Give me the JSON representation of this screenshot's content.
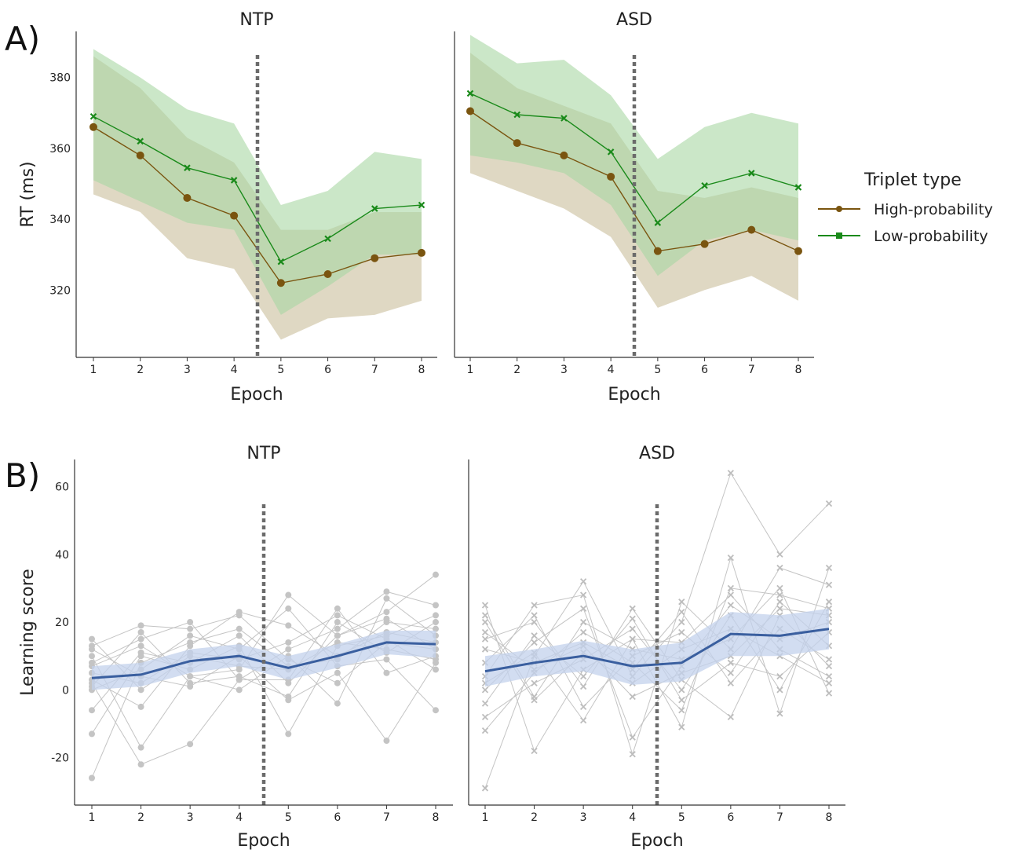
{
  "figure": {
    "panel_letters": [
      "A)",
      "B)"
    ]
  },
  "legend": {
    "title": "Triplet type",
    "items": [
      {
        "label": "High-probability",
        "color": "#7a5510"
      },
      {
        "label": "Low-probability",
        "color": "#1a8a1a"
      }
    ]
  },
  "chart_data": [
    {
      "panel": "A",
      "type": "line",
      "title": "NTP",
      "xlabel": "Epoch",
      "ylabel": "RT (ms)",
      "x": [
        1,
        2,
        3,
        4,
        5,
        6,
        7,
        8
      ],
      "ylim": [
        301,
        393
      ],
      "yticks": [
        320,
        340,
        360,
        380
      ],
      "vline_x": 4.5,
      "series": [
        {
          "name": "High-probability",
          "color": "#7a5510",
          "band_color": "#d9d1b8",
          "marker": "circle",
          "values": [
            366,
            358,
            346,
            341,
            322,
            324.5,
            329,
            330.5
          ],
          "lower": [
            347,
            342,
            329,
            326,
            306,
            312,
            313,
            317
          ],
          "upper": [
            386,
            377,
            363,
            356,
            337,
            337,
            342,
            342
          ]
        },
        {
          "name": "Low-probability",
          "color": "#1a8a1a",
          "band_color": "#a9d7a3",
          "marker": "x",
          "values": [
            369,
            362,
            354.5,
            351,
            328,
            334.5,
            343,
            344
          ],
          "lower": [
            351,
            345,
            339,
            337,
            313,
            321,
            330,
            330
          ],
          "upper": [
            388,
            380,
            371,
            367,
            344,
            348,
            359,
            357
          ]
        }
      ]
    },
    {
      "panel": "A",
      "type": "line",
      "title": "ASD",
      "xlabel": "Epoch",
      "ylabel": "",
      "x": [
        1,
        2,
        3,
        4,
        5,
        6,
        7,
        8
      ],
      "ylim": [
        301,
        393
      ],
      "yticks": [],
      "vline_x": 4.5,
      "series": [
        {
          "name": "High-probability",
          "color": "#7a5510",
          "band_color": "#d9d1b8",
          "marker": "circle",
          "values": [
            370.5,
            361.5,
            358,
            352,
            331,
            333,
            337,
            331
          ],
          "lower": [
            353,
            348,
            343,
            335,
            315,
            320,
            324,
            317
          ],
          "upper": [
            387,
            377,
            372,
            367,
            348,
            346,
            349,
            346
          ]
        },
        {
          "name": "Low-probability",
          "color": "#1a8a1a",
          "band_color": "#a9d7a3",
          "marker": "x",
          "values": [
            375.5,
            369.5,
            368.5,
            359,
            339,
            349.5,
            353,
            349
          ],
          "lower": [
            358,
            356,
            353,
            344,
            324,
            334,
            337,
            334
          ],
          "upper": [
            392,
            384,
            385,
            375,
            357,
            366,
            370,
            367
          ]
        }
      ]
    },
    {
      "panel": "B",
      "type": "line",
      "title": "NTP",
      "xlabel": "Epoch",
      "ylabel": "Learning score",
      "x": [
        1,
        2,
        3,
        4,
        5,
        6,
        7,
        8
      ],
      "ylim": [
        -34,
        68
      ],
      "yticks": [
        -20,
        0,
        20,
        40,
        60
      ],
      "vline_x": 4.5,
      "marker": "circle",
      "mean": {
        "color": "#3a5f9f",
        "band_color": "#c3d1ec",
        "values": [
          3.5,
          4.5,
          8.5,
          10,
          6.5,
          10,
          14,
          13.5
        ],
        "lower": [
          0,
          1,
          5,
          7,
          3,
          6.5,
          10.5,
          9.5
        ],
        "upper": [
          7,
          8,
          12,
          13.5,
          10,
          13.5,
          17.5,
          17.5
        ]
      },
      "individual": [
        [
          2,
          -22,
          -16,
          3,
          12,
          18,
          29,
          25
        ],
        [
          13,
          19,
          18,
          22,
          9,
          2,
          14,
          12
        ],
        [
          10,
          -17,
          4,
          6,
          28,
          16,
          23,
          34
        ],
        [
          -26,
          8,
          14,
          18,
          7,
          9,
          20,
          18
        ],
        [
          5,
          2,
          11,
          9,
          14,
          22,
          15,
          6
        ],
        [
          -13,
          10,
          6,
          13,
          -13,
          13,
          16,
          22
        ],
        [
          8,
          15,
          20,
          3,
          3,
          24,
          5,
          10
        ],
        [
          3,
          -5,
          13,
          23,
          19,
          10,
          17,
          14
        ],
        [
          12,
          4,
          1,
          10,
          -3,
          5,
          -15,
          8
        ],
        [
          -6,
          11,
          8,
          16,
          2,
          16,
          21,
          12
        ],
        [
          0,
          6,
          16,
          12,
          24,
          7,
          9,
          -6
        ],
        [
          7,
          13,
          4,
          0,
          10,
          -4,
          27,
          16
        ],
        [
          15,
          0,
          10,
          7,
          6,
          14,
          12,
          9
        ],
        [
          1,
          17,
          2,
          4,
          -2,
          20,
          11,
          20
        ]
      ]
    },
    {
      "panel": "B",
      "type": "line",
      "title": "ASD",
      "xlabel": "Epoch",
      "ylabel": "",
      "x": [
        1,
        2,
        3,
        4,
        5,
        6,
        7,
        8
      ],
      "ylim": [
        -34,
        68
      ],
      "yticks": [],
      "vline_x": 4.5,
      "marker": "x",
      "mean": {
        "color": "#3a5f9f",
        "band_color": "#c3d1ec",
        "values": [
          5.5,
          8,
          10,
          7,
          8,
          16.5,
          16,
          18
        ],
        "lower": [
          1,
          4,
          5.5,
          1.5,
          2.5,
          10,
          10,
          12
        ],
        "upper": [
          10,
          12,
          14.5,
          12,
          14,
          23,
          22,
          24
        ]
      },
      "individual": [
        [
          -29,
          10,
          32,
          4,
          20,
          64,
          40,
          55
        ],
        [
          25,
          -18,
          6,
          15,
          -11,
          39,
          -7,
          36
        ],
        [
          4,
          25,
          28,
          -19,
          26,
          12,
          36,
          31
        ],
        [
          15,
          20,
          1,
          24,
          3,
          -8,
          22,
          7
        ],
        [
          -12,
          5,
          17,
          8,
          -6,
          30,
          28,
          24
        ],
        [
          20,
          -3,
          11,
          2,
          12,
          18,
          10,
          2
        ],
        [
          0,
          14,
          24,
          -14,
          7,
          25,
          15,
          20
        ],
        [
          8,
          22,
          -5,
          10,
          17,
          5,
          26,
          13
        ],
        [
          -8,
          2,
          9,
          18,
          0,
          22,
          0,
          26
        ],
        [
          12,
          8,
          14,
          6,
          23,
          2,
          18,
          9
        ],
        [
          -4,
          16,
          4,
          21,
          -3,
          8,
          4,
          17
        ],
        [
          22,
          -2,
          20,
          12,
          9,
          15,
          30,
          -1
        ],
        [
          2,
          11,
          -9,
          15,
          14,
          28,
          12,
          4
        ],
        [
          17,
          6,
          13,
          -2,
          5,
          10,
          24,
          22
        ]
      ]
    }
  ]
}
